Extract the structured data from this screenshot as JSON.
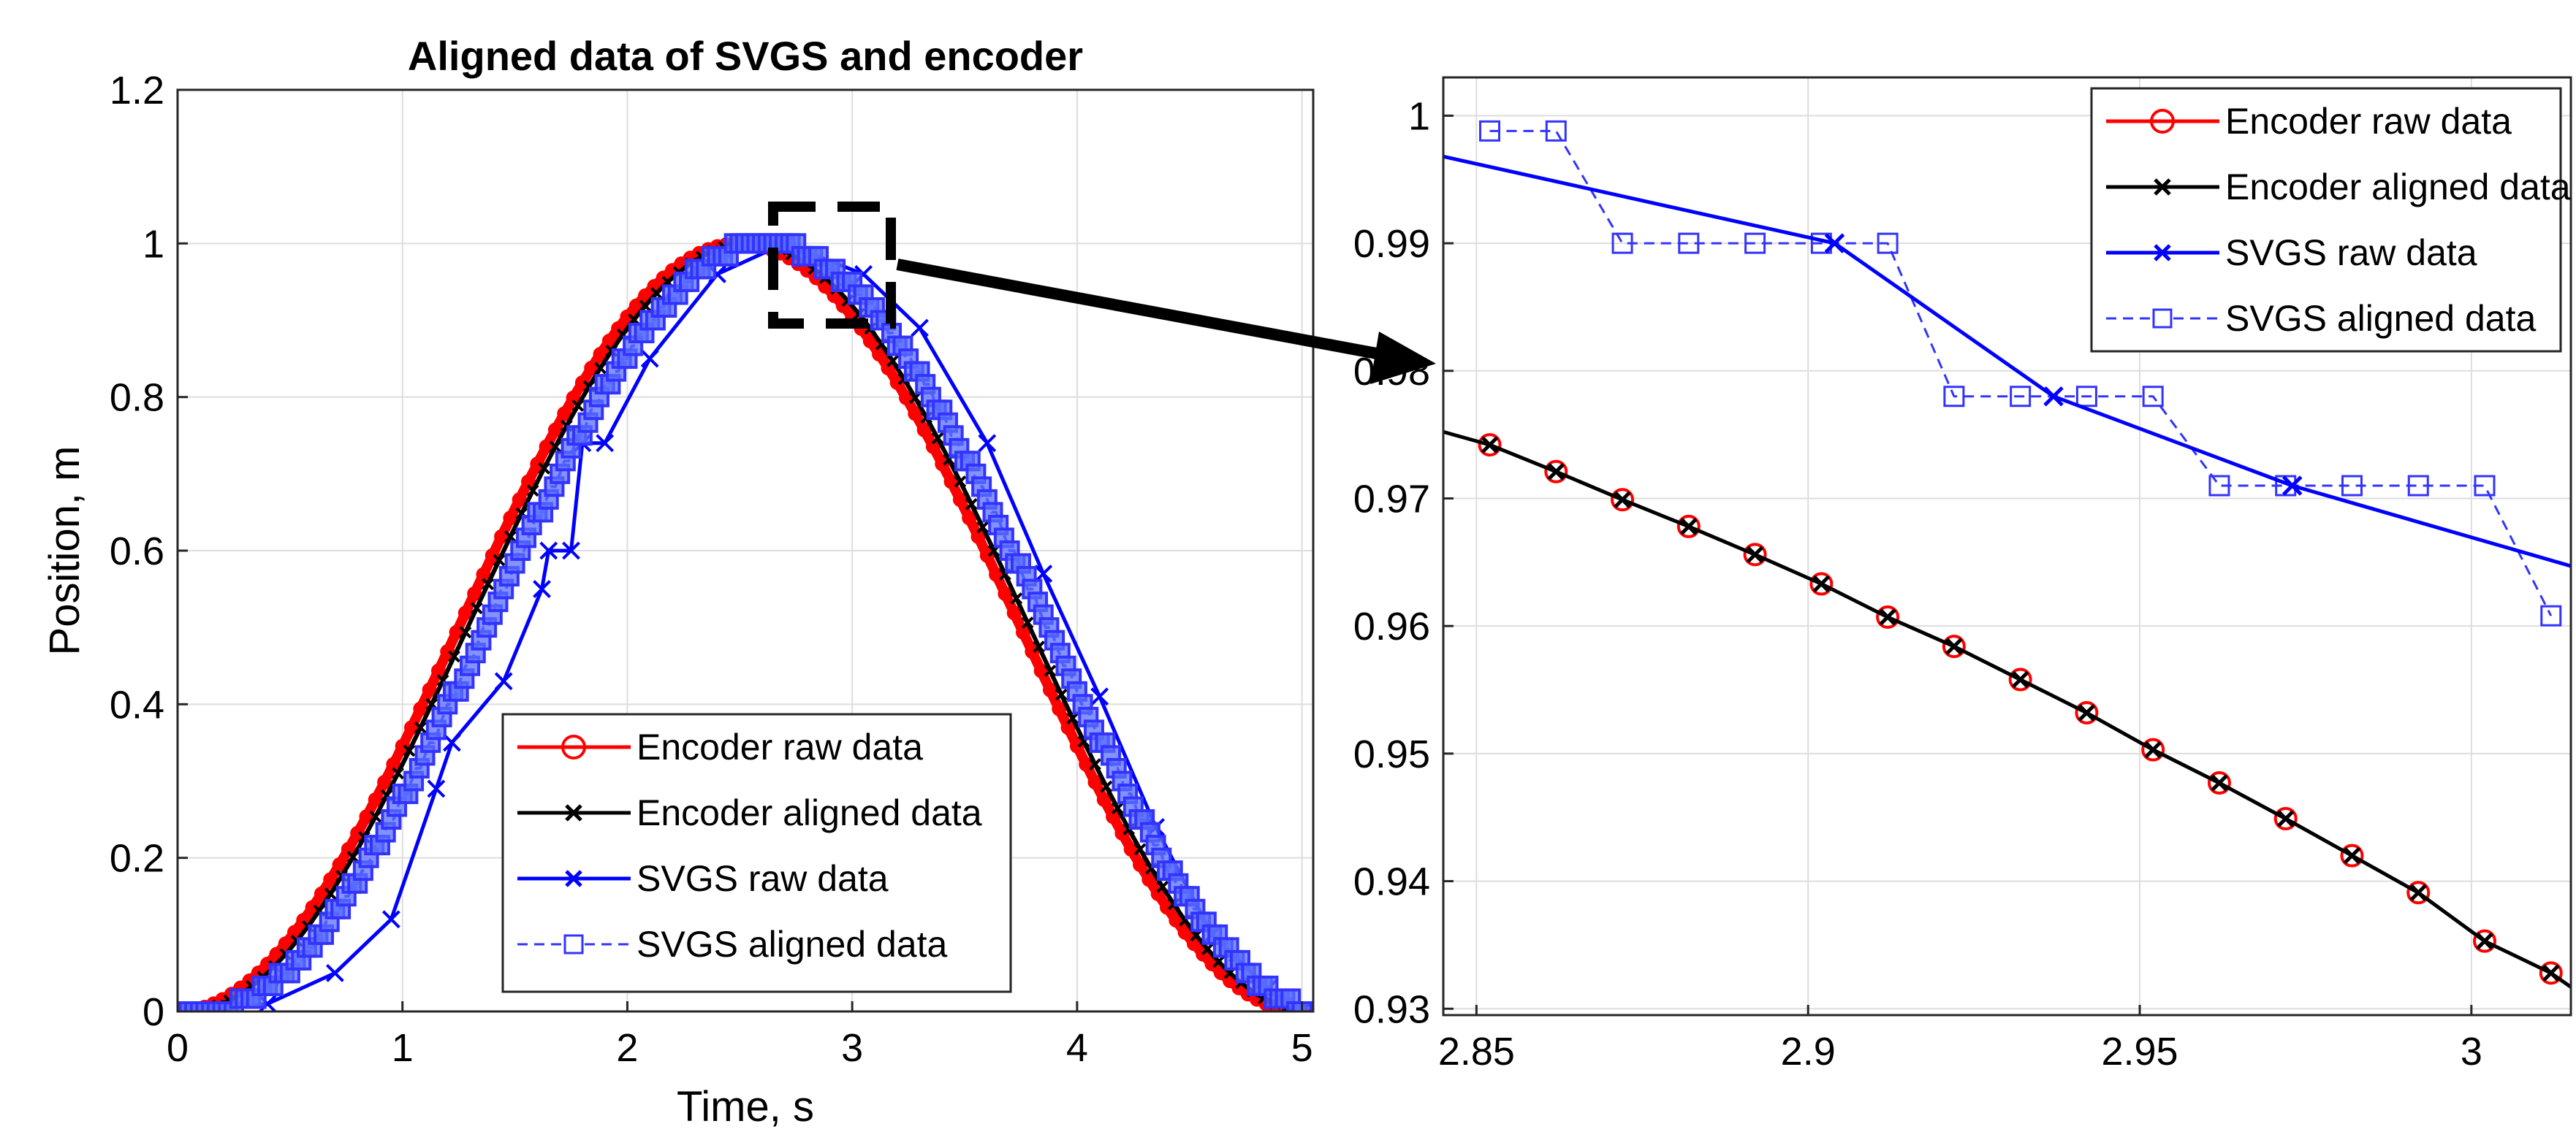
{
  "figure": "Aligned data of SVGS and encoder",
  "colors": {
    "encoder_raw": "#ff0000",
    "encoder_aligned": "#000000",
    "svgs_raw": "#0000ff",
    "svgs_aligned": "#3333ff",
    "grid": "#dddddd",
    "callout": "#000000"
  },
  "legend": [
    {
      "label": "Encoder raw data",
      "marker": "circle",
      "style": "solid"
    },
    {
      "label": "Encoder aligned data",
      "marker": "x",
      "style": "solid"
    },
    {
      "label": "SVGS raw data",
      "marker": "x",
      "style": "solid"
    },
    {
      "label": "SVGS aligned data",
      "marker": "square",
      "style": "dashed"
    }
  ],
  "chart_data": [
    {
      "type": "line",
      "title": "Aligned data of SVGS and encoder",
      "xlabel": "Time, s",
      "ylabel": "Position, m",
      "xlim": [
        0,
        5.05
      ],
      "ylim": [
        0,
        1.2
      ],
      "xticks": [
        "0",
        "1",
        "2",
        "3",
        "4",
        "5"
      ],
      "yticks": [
        "0",
        "0.2",
        "0.4",
        "0.6",
        "0.8",
        "1",
        "1.2"
      ],
      "grid": true,
      "legend_position": "bottom-right",
      "series": [
        {
          "name": "Encoder raw data",
          "model": "y = 0.5*(1-cos(2*pi*t/5)) for t in [0,5]"
        },
        {
          "name": "Encoder aligned data",
          "model": "same as encoder raw, x-markers",
          "time_shift_s": 0.04
        },
        {
          "name": "SVGS raw data",
          "model": "staircase trace of the encoder curve lagging by ~0.12 s",
          "steps": [
            {
              "x": 0.0,
              "y": 0.0
            },
            {
              "x": 0.4,
              "y": 0.01
            },
            {
              "x": 0.7,
              "y": 0.05
            },
            {
              "x": 0.95,
              "y": 0.12
            },
            {
              "x": 1.15,
              "y": 0.29
            },
            {
              "x": 1.22,
              "y": 0.35
            },
            {
              "x": 1.45,
              "y": 0.43
            },
            {
              "x": 1.62,
              "y": 0.55
            },
            {
              "x": 1.65,
              "y": 0.6
            },
            {
              "x": 1.75,
              "y": 0.6
            },
            {
              "x": 1.8,
              "y": 0.74
            },
            {
              "x": 1.9,
              "y": 0.74
            },
            {
              "x": 2.1,
              "y": 0.85
            },
            {
              "x": 2.4,
              "y": 0.96
            },
            {
              "x": 2.7,
              "y": 1.0
            },
            {
              "x": 3.05,
              "y": 0.96
            },
            {
              "x": 3.3,
              "y": 0.89
            },
            {
              "x": 3.6,
              "y": 0.74
            },
            {
              "x": 3.85,
              "y": 0.57
            },
            {
              "x": 4.1,
              "y": 0.41
            },
            {
              "x": 4.35,
              "y": 0.24
            },
            {
              "x": 4.6,
              "y": 0.1
            },
            {
              "x": 4.85,
              "y": 0.03
            },
            {
              "x": 5.0,
              "y": 0.0
            }
          ]
        },
        {
          "name": "SVGS aligned data",
          "model": "dense square markers along the SVGS raw trace"
        }
      ],
      "callout": "dashed zoom box around t ≈ 2.7–3.2 s, y ≈ 0.92–1.01, arrow to right panel"
    },
    {
      "type": "line",
      "title": "",
      "xlabel": "",
      "ylabel": "",
      "xlim": [
        2.845,
        3.015
      ],
      "ylim": [
        0.9295,
        1.003
      ],
      "xticks": [
        "2.85",
        "2.9",
        "2.95",
        "3"
      ],
      "yticks": [
        "0.93",
        "0.94",
        "0.95",
        "0.96",
        "0.97",
        "0.98",
        "0.99",
        "1"
      ],
      "grid": true,
      "legend_position": "top-right",
      "series": [
        {
          "name": "Encoder raw data",
          "x": [
            2.852,
            2.862,
            2.872,
            2.882,
            2.892,
            2.902,
            2.912,
            2.922,
            2.932,
            2.942,
            2.952,
            2.962,
            2.972,
            2.982,
            2.992,
            3.002,
            3.012
          ],
          "y": [
            0.9742,
            0.9721,
            0.9699,
            0.9678,
            0.9656,
            0.9633,
            0.9607,
            0.9584,
            0.9558,
            0.9532,
            0.9503,
            0.9477,
            0.9449,
            0.942,
            0.9391,
            0.9353,
            0.9328
          ]
        },
        {
          "name": "Encoder aligned data",
          "x": [
            2.852,
            2.862,
            2.872,
            2.882,
            2.892,
            2.902,
            2.912,
            2.922,
            2.932,
            2.942,
            2.952,
            2.962,
            2.972,
            2.982,
            2.992,
            3.002,
            3.012
          ],
          "y": [
            0.9742,
            0.9721,
            0.9699,
            0.9678,
            0.9656,
            0.9633,
            0.9607,
            0.9584,
            0.9558,
            0.9532,
            0.9503,
            0.9477,
            0.9449,
            0.942,
            0.9391,
            0.9353,
            0.9328
          ]
        },
        {
          "name": "SVGS raw data",
          "x": [
            2.845,
            2.904,
            2.937,
            2.973,
            3.015
          ],
          "y": [
            0.9968,
            0.99,
            0.978,
            0.971,
            0.9647
          ],
          "markers_at": [
            2.904,
            2.937,
            2.973
          ]
        },
        {
          "name": "SVGS aligned data",
          "x": [
            2.852,
            2.862,
            2.872,
            2.882,
            2.892,
            2.902,
            2.912,
            2.922,
            2.932,
            2.942,
            2.952,
            2.962,
            2.972,
            2.982,
            2.992,
            3.002,
            3.012
          ],
          "y": [
            0.9988,
            0.9988,
            0.99,
            0.99,
            0.99,
            0.99,
            0.99,
            0.978,
            0.978,
            0.978,
            0.978,
            0.971,
            0.971,
            0.971,
            0.971,
            0.971,
            0.9608
          ]
        }
      ]
    }
  ]
}
